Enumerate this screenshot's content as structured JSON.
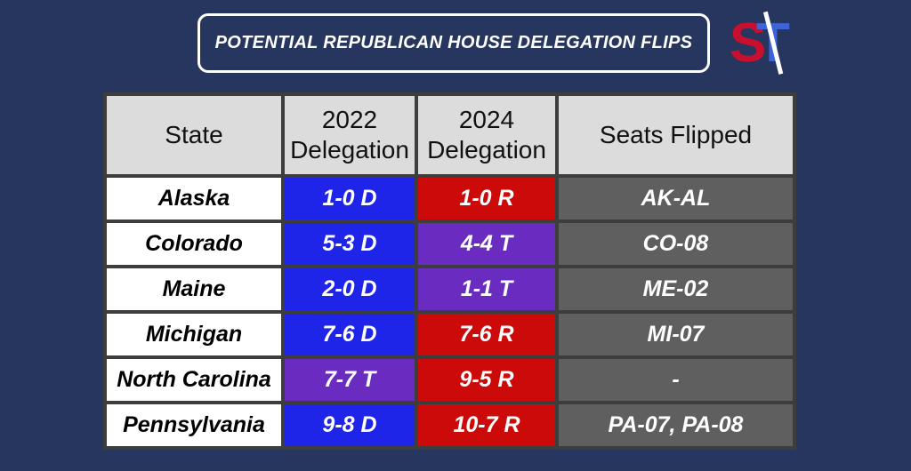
{
  "title": "POTENTIAL REPUBLICAN HOUSE DELEGATION FLIPS",
  "logo": {
    "s": "S",
    "t": "T"
  },
  "colors": {
    "D": "#1f25e8",
    "R": "#cc0a0a",
    "T": "#6a2bc0",
    "seats": "#5f5f5f",
    "header": "#dcdcdc",
    "background": "#27365e"
  },
  "headers": {
    "state": "State",
    "d2022_line1": "2022",
    "d2022_line2": "Delegation",
    "d2024_line1": "2024",
    "d2024_line2": "Delegation",
    "seats": "Seats Flipped"
  },
  "rows": [
    {
      "state": "Alaska",
      "d2022": "1-0 D",
      "d2022_party": "D",
      "d2024": "1-0 R",
      "d2024_party": "R",
      "seats": "AK-AL"
    },
    {
      "state": "Colorado",
      "d2022": "5-3 D",
      "d2022_party": "D",
      "d2024": "4-4 T",
      "d2024_party": "T",
      "seats": "CO-08"
    },
    {
      "state": "Maine",
      "d2022": "2-0 D",
      "d2022_party": "D",
      "d2024": "1-1 T",
      "d2024_party": "T",
      "seats": "ME-02"
    },
    {
      "state": "Michigan",
      "d2022": "7-6 D",
      "d2022_party": "D",
      "d2024": "7-6 R",
      "d2024_party": "R",
      "seats": "MI-07"
    },
    {
      "state": "North Carolina",
      "d2022": "7-7 T",
      "d2022_party": "T",
      "d2024": "9-5 R",
      "d2024_party": "R",
      "seats": "-"
    },
    {
      "state": "Pennsylvania",
      "d2022": "9-8 D",
      "d2022_party": "D",
      "d2024": "10-7 R",
      "d2024_party": "R",
      "seats": "PA-07, PA-08"
    }
  ]
}
